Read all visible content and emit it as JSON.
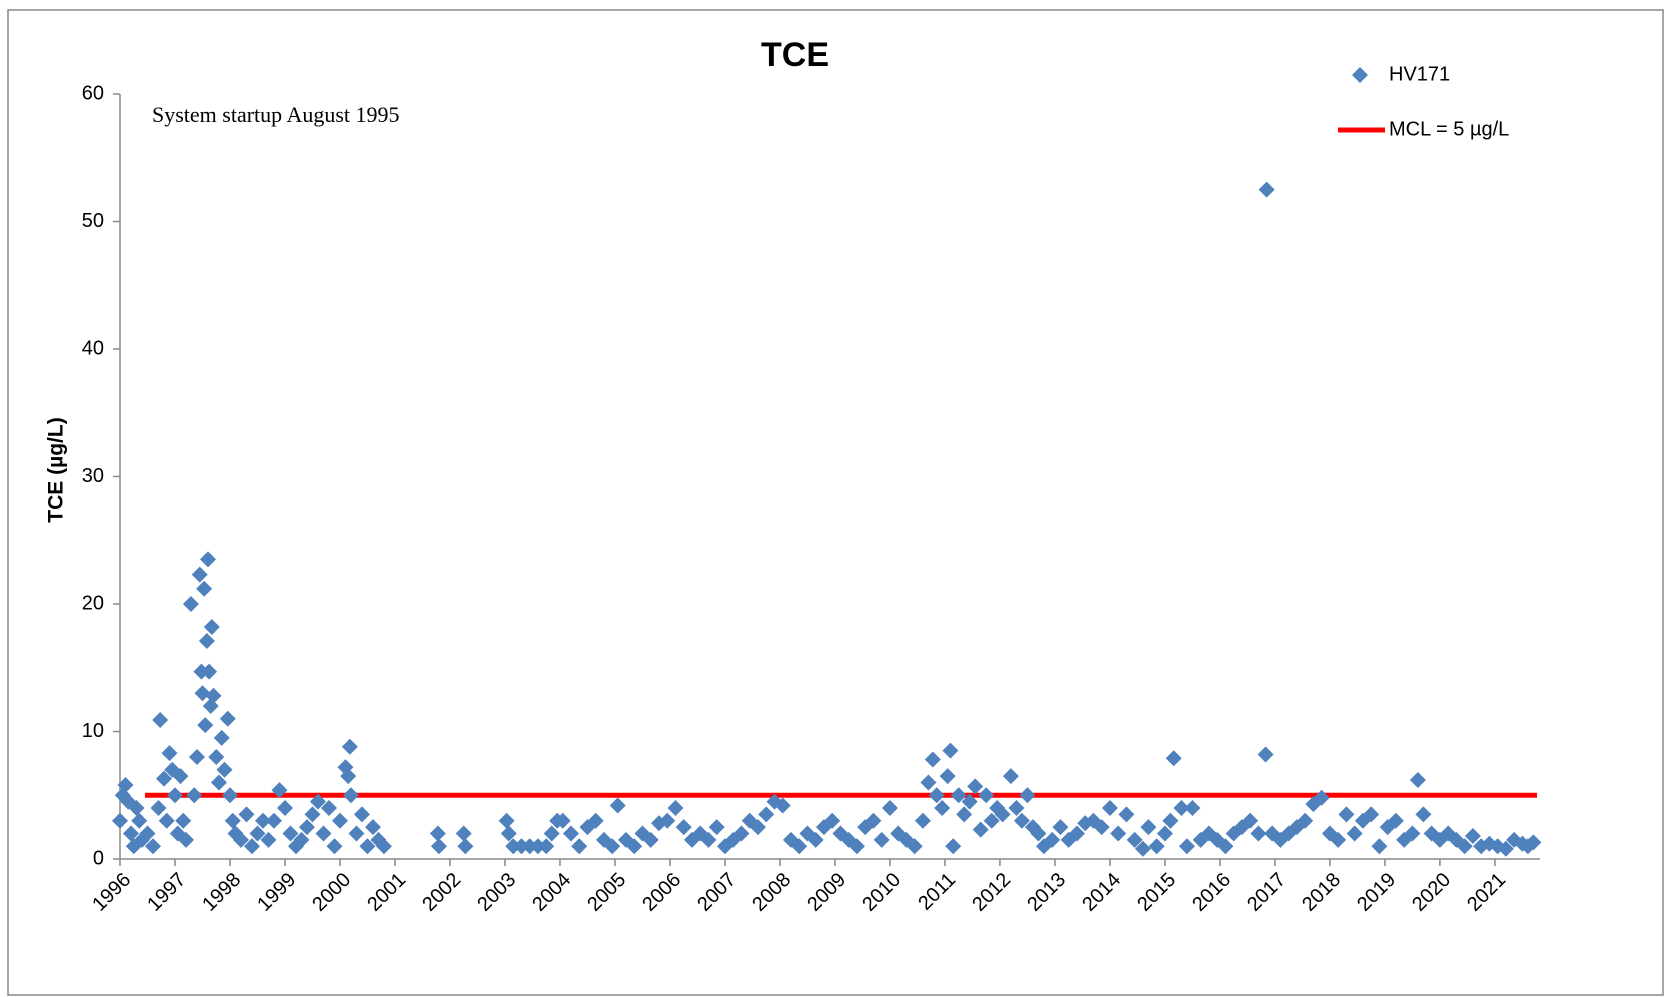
{
  "chart_data": {
    "type": "scatter",
    "title": "TCE",
    "ylabel": "TCE (µg/L)",
    "annotation": "System startup August 1995",
    "legend": "upper right",
    "xlim": [
      1996,
      2021.82
    ],
    "ylim": [
      0,
      60
    ],
    "xticks": [
      1996,
      1997,
      1998,
      1999,
      2000,
      2001,
      2002,
      2003,
      2004,
      2005,
      2006,
      2007,
      2008,
      2009,
      2010,
      2011,
      2012,
      2013,
      2014,
      2015,
      2016,
      2017,
      2018,
      2019,
      2020,
      2021
    ],
    "yticks": [
      0,
      10,
      20,
      30,
      40,
      50,
      60
    ],
    "x": [
      1996.0,
      1996.05,
      1996.1,
      1996.15,
      1996.2,
      1996.25,
      1996.3,
      1996.35,
      1996.4,
      1996.5,
      1996.6,
      1996.7,
      1996.73,
      1996.8,
      1996.85,
      1996.9,
      1996.95,
      1997.0,
      1997.05,
      1997.1,
      1997.15,
      1997.2,
      1997.29,
      1997.35,
      1997.4,
      1997.45,
      1997.48,
      1997.5,
      1997.53,
      1997.55,
      1997.58,
      1997.6,
      1997.62,
      1997.65,
      1997.67,
      1997.7,
      1997.75,
      1997.8,
      1997.85,
      1997.9,
      1997.96,
      1998.0,
      1998.05,
      1998.1,
      1998.2,
      1998.3,
      1998.4,
      1998.5,
      1998.6,
      1998.7,
      1998.8,
      1998.9,
      1999.0,
      1999.1,
      1999.2,
      1999.3,
      1999.4,
      1999.5,
      1999.6,
      1999.7,
      1999.8,
      1999.9,
      2000.0,
      2000.1,
      2000.15,
      2000.18,
      2000.2,
      2000.3,
      2000.4,
      2000.5,
      2000.6,
      2000.7,
      2000.8,
      2001.78,
      2001.8,
      2002.25,
      2002.28,
      2003.03,
      2003.07,
      2003.15,
      2003.3,
      2003.45,
      2003.6,
      2003.75,
      2003.85,
      2003.95,
      2004.05,
      2004.2,
      2004.35,
      2004.5,
      2004.65,
      2004.8,
      2004.95,
      2005.05,
      2005.2,
      2005.35,
      2005.5,
      2005.65,
      2005.8,
      2005.95,
      2006.1,
      2006.25,
      2006.4,
      2006.55,
      2006.7,
      2006.85,
      2007.0,
      2007.15,
      2007.3,
      2007.45,
      2007.6,
      2007.75,
      2007.9,
      2008.05,
      2008.2,
      2008.35,
      2008.5,
      2008.65,
      2008.8,
      2008.95,
      2009.1,
      2009.25,
      2009.4,
      2009.55,
      2009.7,
      2009.85,
      2010.0,
      2010.15,
      2010.3,
      2010.45,
      2010.6,
      2010.7,
      2010.78,
      2010.85,
      2010.95,
      2011.05,
      2011.1,
      2011.15,
      2011.25,
      2011.35,
      2011.45,
      2011.55,
      2011.65,
      2011.75,
      2011.85,
      2011.95,
      2012.05,
      2012.2,
      2012.3,
      2012.4,
      2012.5,
      2012.6,
      2012.7,
      2012.8,
      2012.95,
      2013.1,
      2013.25,
      2013.4,
      2013.55,
      2013.7,
      2013.85,
      2014.0,
      2014.15,
      2014.3,
      2014.45,
      2014.6,
      2014.7,
      2014.85,
      2015.0,
      2015.1,
      2015.16,
      2015.3,
      2015.4,
      2015.5,
      2015.65,
      2015.8,
      2015.95,
      2016.1,
      2016.25,
      2016.4,
      2016.55,
      2016.7,
      2016.83,
      2016.85,
      2016.95,
      2017.1,
      2017.25,
      2017.4,
      2017.55,
      2017.7,
      2017.85,
      2018.0,
      2018.15,
      2018.3,
      2018.45,
      2018.6,
      2018.75,
      2018.9,
      2019.05,
      2019.2,
      2019.35,
      2019.5,
      2019.6,
      2019.7,
      2019.85,
      2020.0,
      2020.15,
      2020.3,
      2020.45,
      2020.6,
      2020.75,
      2020.9,
      2021.05,
      2021.2,
      2021.35,
      2021.5,
      2021.6,
      2021.7
    ],
    "series": [
      {
        "name": "HV171",
        "color": "#4f81bd",
        "values": [
          3,
          5,
          5.8,
          4.5,
          2,
          1,
          4,
          3,
          1.5,
          2,
          1,
          4,
          10.9,
          6.3,
          3,
          8.3,
          7,
          5,
          2,
          6.5,
          3,
          1.5,
          20,
          5,
          8,
          22.3,
          14.7,
          13,
          21.2,
          10.5,
          17.1,
          23.5,
          14.7,
          12,
          18.2,
          12.8,
          8,
          6,
          9.5,
          7,
          11,
          5,
          3,
          2,
          1.5,
          3.5,
          1,
          2,
          3,
          1.5,
          3,
          5.4,
          4,
          2,
          1,
          1.5,
          2.5,
          3.5,
          4.5,
          2,
          4,
          1,
          3,
          7.2,
          6.5,
          8.8,
          5,
          2,
          3.5,
          1,
          2.5,
          1.5,
          1,
          2,
          1,
          2,
          1,
          3,
          2,
          1,
          1,
          1,
          1,
          1,
          2,
          3,
          3,
          2,
          1,
          2.5,
          3,
          1.5,
          1,
          4.2,
          1.5,
          1,
          2,
          1.5,
          2.8,
          3,
          4,
          2.5,
          1.5,
          2,
          1.5,
          2.5,
          1,
          1.5,
          2,
          3,
          2.5,
          3.5,
          4.5,
          4.2,
          1.5,
          1,
          2,
          1.5,
          2.5,
          3,
          2,
          1.5,
          1,
          2.5,
          3,
          1.5,
          4,
          2,
          1.5,
          1,
          3,
          6,
          7.8,
          5,
          4,
          6.5,
          8.5,
          1,
          5,
          3.5,
          4.5,
          5.7,
          2.3,
          5,
          3,
          4,
          3.5,
          6.5,
          4,
          3,
          5,
          2.5,
          2,
          1,
          1.5,
          2.5,
          1.5,
          2,
          2.8,
          3,
          2.5,
          4,
          2,
          3.5,
          1.5,
          0.8,
          2.5,
          1,
          2,
          3,
          7.9,
          4,
          1,
          4,
          1.5,
          2,
          1.5,
          1,
          2,
          2.5,
          3,
          2,
          8.2,
          52.5,
          2,
          1.5,
          2,
          2.5,
          3,
          4.3,
          4.8,
          2,
          1.5,
          3.5,
          2,
          3,
          3.5,
          1,
          2.5,
          3,
          1.5,
          2,
          6.2,
          3.5,
          2,
          1.5,
          2,
          1.5,
          1,
          1.8,
          1,
          1.2,
          1,
          0.8,
          1.5,
          1.2,
          1,
          1.3
        ]
      }
    ],
    "reference_lines": [
      {
        "name": "MCL = 5 µg/L",
        "value": 5,
        "color": "#ff0000"
      }
    ]
  }
}
